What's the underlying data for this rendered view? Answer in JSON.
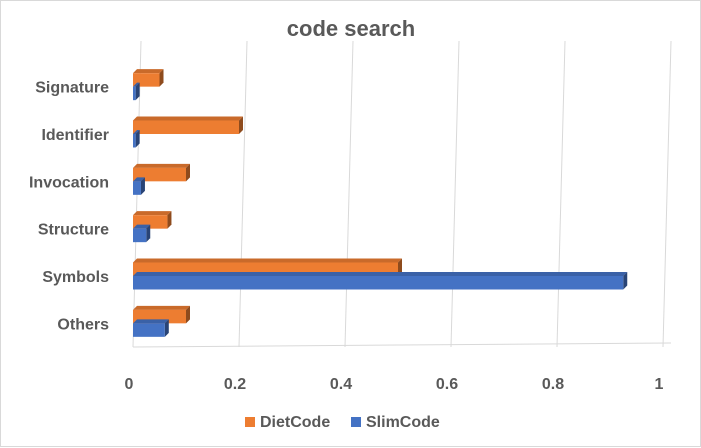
{
  "chart_data": {
    "type": "bar",
    "orientation": "horizontal",
    "title": "code search",
    "categories": [
      "Signature",
      "Identifier",
      "Invocation",
      "Structure",
      "Symbols",
      "Others"
    ],
    "series": [
      {
        "name": "DietCode",
        "color": "#ED7D31",
        "values": [
          0.05,
          0.2,
          0.1,
          0.065,
          0.5,
          0.1
        ]
      },
      {
        "name": "SlimCode",
        "color": "#4472C4",
        "values": [
          0.005,
          0.005,
          0.015,
          0.025,
          0.925,
          0.06
        ]
      }
    ],
    "xlim": [
      0,
      1
    ],
    "xticks": [
      "0",
      "0.2",
      "0.4",
      "0.6",
      "0.8",
      "1"
    ],
    "xlabel": "",
    "ylabel": "",
    "grid": true,
    "legend_position": "bottom"
  }
}
